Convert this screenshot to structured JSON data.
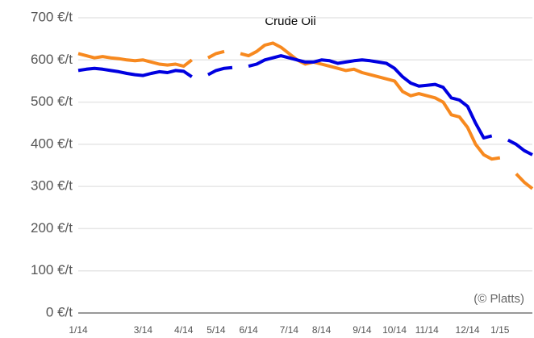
{
  "chart_data": {
    "type": "line",
    "title": "Crude Oil",
    "annotation": "(© Platts)",
    "categories": [
      "1/14",
      null,
      null,
      null,
      null,
      null,
      null,
      null,
      "3/14",
      null,
      null,
      null,
      null,
      "4/14",
      null,
      null,
      null,
      "5/14",
      null,
      null,
      null,
      "6/14",
      null,
      null,
      null,
      null,
      "7/14",
      null,
      null,
      null,
      "8/14",
      null,
      null,
      null,
      null,
      "9/14",
      null,
      null,
      null,
      "10/14",
      null,
      null,
      null,
      "11/14",
      null,
      null,
      null,
      null,
      "12/14",
      null,
      null,
      null,
      "1/15",
      null,
      null,
      null,
      null
    ],
    "series": [
      {
        "name": "Blue",
        "color": "#0000e0",
        "values": [
          575,
          578,
          580,
          578,
          575,
          572,
          568,
          565,
          563,
          568,
          572,
          570,
          575,
          573,
          560,
          null,
          565,
          575,
          580,
          582,
          null,
          585,
          590,
          600,
          605,
          610,
          605,
          600,
          595,
          595,
          600,
          598,
          592,
          595,
          598,
          600,
          598,
          595,
          592,
          580,
          560,
          545,
          538,
          540,
          542,
          535,
          510,
          505,
          490,
          450,
          415,
          420,
          null,
          410,
          400,
          385,
          375
        ]
      },
      {
        "name": "Orange",
        "color": "#f7891f",
        "values": [
          615,
          610,
          605,
          608,
          605,
          603,
          600,
          598,
          600,
          595,
          590,
          588,
          590,
          585,
          600,
          null,
          605,
          615,
          620,
          null,
          615,
          610,
          620,
          635,
          640,
          630,
          615,
          600,
          590,
          595,
          590,
          585,
          580,
          575,
          578,
          570,
          565,
          560,
          555,
          550,
          525,
          515,
          520,
          515,
          510,
          500,
          470,
          465,
          440,
          400,
          375,
          365,
          368,
          null,
          330,
          310,
          295
        ]
      }
    ],
    "ylim": [
      0,
      700
    ],
    "yticks": [
      {
        "value": 0,
        "label": "0 €/t"
      },
      {
        "value": 100,
        "label": "100 €/t"
      },
      {
        "value": 200,
        "label": "200 €/t"
      },
      {
        "value": 300,
        "label": "300 €/t"
      },
      {
        "value": 400,
        "label": "400 €/t"
      },
      {
        "value": 500,
        "label": "500 €/t"
      },
      {
        "value": 600,
        "label": "600 €/t"
      },
      {
        "value": 700,
        "label": "700 €/t"
      }
    ],
    "grid": true
  }
}
